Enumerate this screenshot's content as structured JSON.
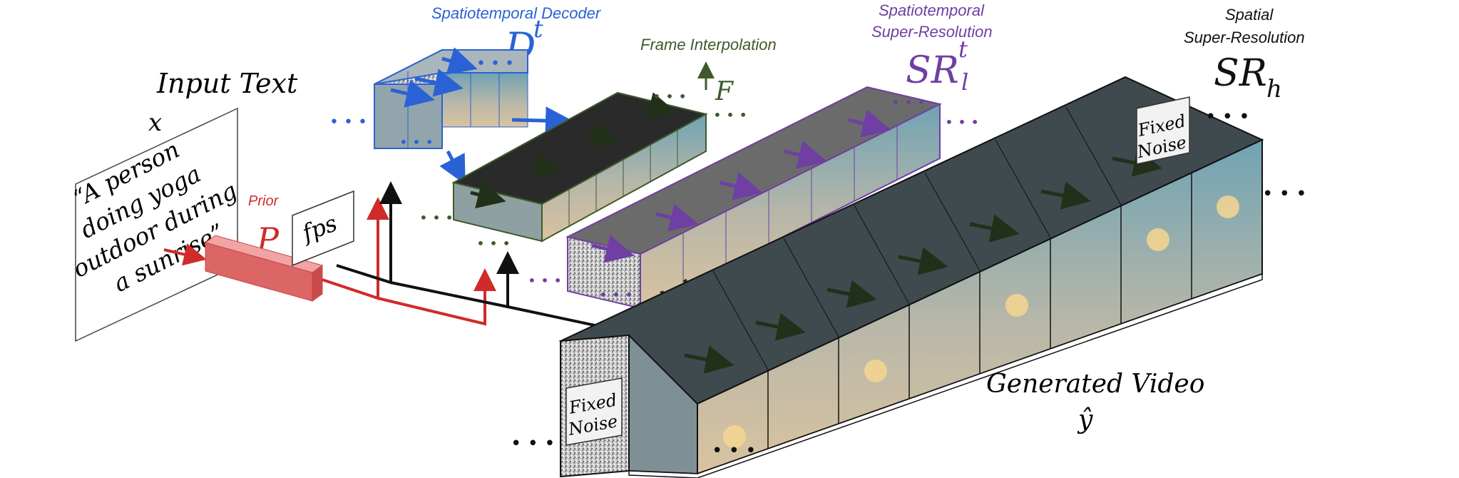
{
  "colors": {
    "decoder": "#2a62d6",
    "interp": "#3e5a2c",
    "sr_low": "#6f3fa3",
    "prior": "#d12a2a",
    "sr_high": "#111111",
    "arrow_dark": "#22301a",
    "sky_top": "#6fa3b4",
    "sky_bottom": "#d9c3a0",
    "sun": "#f6d690"
  },
  "input": {
    "heading": "Input Text",
    "var": "x",
    "prompt_lines": [
      "“A person",
      "doing yoga",
      "outdoor during",
      "a sunrise”"
    ]
  },
  "prior": {
    "caption": "Prior",
    "symbol": "P",
    "fps": "fps"
  },
  "decoder": {
    "caption": "Spatiotemporal Decoder",
    "symbol": "D",
    "sup": "t"
  },
  "interp": {
    "caption": "Frame Interpolation",
    "symbol": "F"
  },
  "sr_low": {
    "caption_line1": "Spatiotemporal",
    "caption_line2": "Super-Resolution",
    "symbol": "SR",
    "sub": "l",
    "sup": "t"
  },
  "sr_high": {
    "caption_line1": "Spatial",
    "caption_line2": "Super-Resolution",
    "symbol": "SR",
    "sub": "h"
  },
  "noise": {
    "line1": "Fixed",
    "line2": "Noise"
  },
  "output": {
    "heading": "Generated Video",
    "var": "ŷ"
  },
  "ellipsis": "• • •"
}
